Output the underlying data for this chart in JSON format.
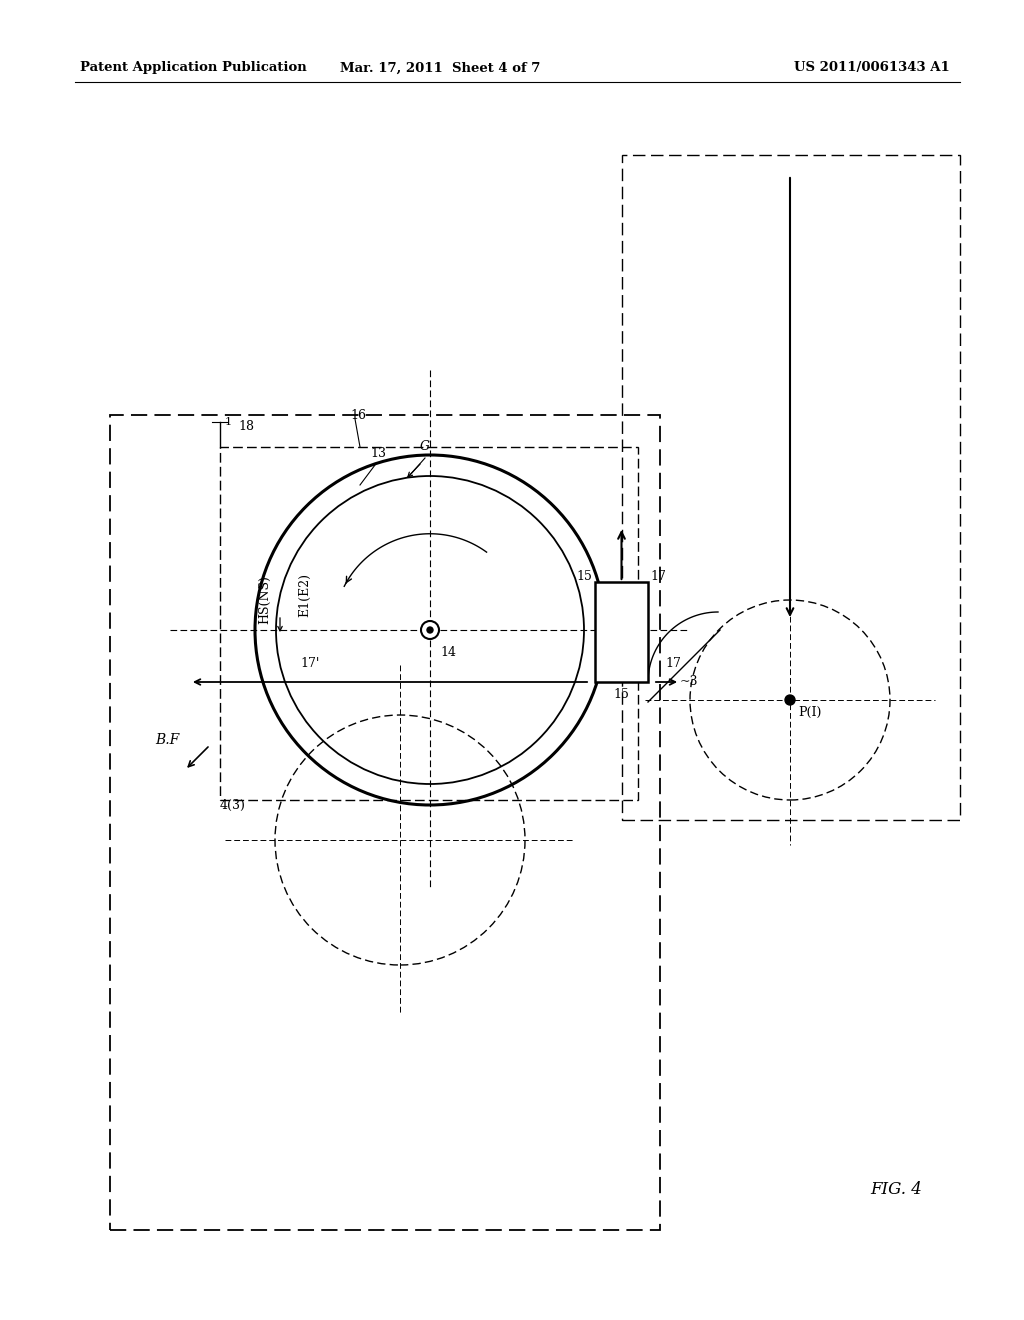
{
  "bg_color": "#ffffff",
  "header_left": "Patent Application Publication",
  "header_mid": "Mar. 17, 2011  Sheet 4 of 7",
  "header_right": "US 2011/0061343 A1",
  "fig_label": "FIG. 4",
  "page_width": 10.24,
  "page_height": 13.2,
  "lw_thin": 0.8,
  "lw_med": 1.2,
  "lw_thick": 1.8
}
